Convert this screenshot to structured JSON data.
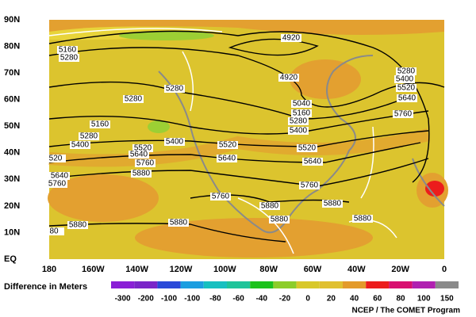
{
  "map": {
    "lat_labels": [
      "90N",
      "80N",
      "70N",
      "60N",
      "50N",
      "40N",
      "30N",
      "20N",
      "10N",
      "EQ"
    ],
    "lon_labels": [
      "180",
      "160W",
      "140W",
      "120W",
      "100W",
      "80W",
      "60W",
      "40W",
      "20W",
      "0"
    ],
    "contour_labels": [
      "4920",
      "4920",
      "5160",
      "5280",
      "5280",
      "5280",
      "5040",
      "5160",
      "5280",
      "5400",
      "5160",
      "5280",
      "5400",
      "5520",
      "5400",
      "5520",
      "5520",
      "5640",
      "5640",
      "5640",
      "5760",
      "5880",
      "5760",
      "5280",
      "5400",
      "5520",
      "5640",
      "5760",
      "5760",
      "5880",
      "5880",
      "5880",
      "5880",
      "5880",
      "5880",
      "5640",
      "5760",
      "520",
      "80"
    ]
  },
  "legend": {
    "title": "Difference in Meters",
    "colors": [
      "#8a1fd6",
      "#7a25c8",
      "#2a49d8",
      "#1c9ee0",
      "#17c0c0",
      "#1fc49a",
      "#1cc21c",
      "#8ccd2a",
      "#d8c82a",
      "#e0c030",
      "#e39a2a",
      "#ec1c1c",
      "#d81070",
      "#b020b0",
      "#8a8a8a"
    ],
    "labels": [
      "-300",
      "-200",
      "-100",
      "-100",
      "-80",
      "-60",
      "-40",
      "-20",
      "0",
      "20",
      "40",
      "60",
      "80",
      "100",
      "150"
    ]
  },
  "credit": "NCEP / The COMET Program"
}
